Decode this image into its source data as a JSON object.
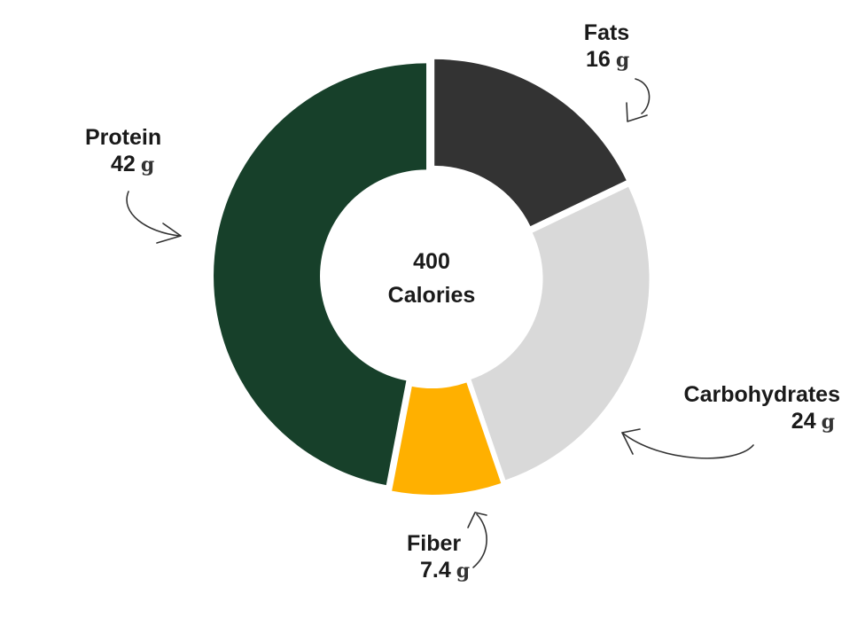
{
  "chart_data": {
    "type": "pie",
    "variant": "donut",
    "center": {
      "value": "400",
      "label": "Calories"
    },
    "unit": "g",
    "slices": [
      {
        "name": "Fats",
        "value": 16,
        "display": "16",
        "color": "#333333"
      },
      {
        "name": "Carbohydrates",
        "value": 24,
        "display": "24",
        "color": "#d9d9d9"
      },
      {
        "name": "Fiber",
        "value": 7.4,
        "display": "7.4",
        "color": "#ffb000"
      },
      {
        "name": "Protein",
        "value": 42,
        "display": "42",
        "color": "#17402a"
      }
    ]
  }
}
